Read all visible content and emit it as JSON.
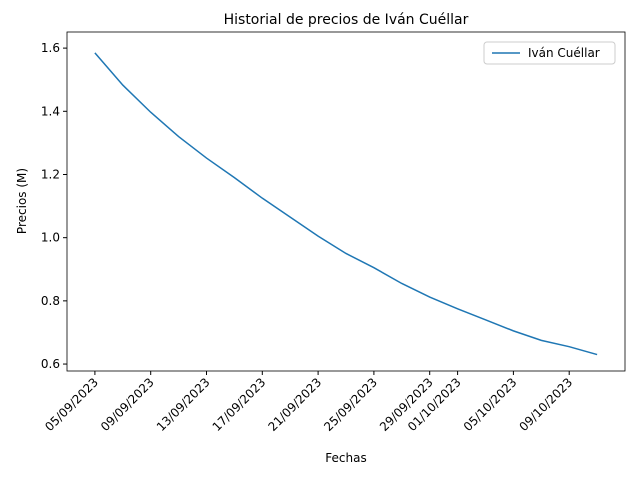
{
  "chart_data": {
    "type": "line",
    "title": "Historial de precios de Iván Cuéllar",
    "xlabel": "Fechas",
    "ylabel": "Precios (M)",
    "x": [
      "05/09/2023",
      "07/09/2023",
      "09/09/2023",
      "11/09/2023",
      "13/09/2023",
      "15/09/2023",
      "17/09/2023",
      "19/09/2023",
      "21/09/2023",
      "23/09/2023",
      "25/09/2023",
      "27/09/2023",
      "29/09/2023",
      "01/10/2023",
      "03/10/2023",
      "05/10/2023",
      "07/10/2023",
      "09/10/2023",
      "11/10/2023"
    ],
    "series": [
      {
        "name": "Iván Cuéllar",
        "color": "#1f77b4",
        "values": [
          1.585,
          1.483,
          1.397,
          1.32,
          1.252,
          1.19,
          1.125,
          1.065,
          1.005,
          0.95,
          0.905,
          0.855,
          0.812,
          0.775,
          0.74,
          0.705,
          0.675,
          0.655,
          0.63
        ]
      }
    ],
    "xlim": [
      "03/09/2023",
      "13/10/2023"
    ],
    "xticks": [
      "05/09/2023",
      "09/09/2023",
      "13/09/2023",
      "17/09/2023",
      "21/09/2023",
      "25/09/2023",
      "29/09/2023",
      "01/10/2023",
      "05/10/2023",
      "09/10/2023"
    ],
    "ylim": [
      0.578,
      1.651
    ],
    "yticks": [
      0.6,
      0.8,
      {
        "value": 1,
        "label": "1.0"
      },
      1.2,
      1.4,
      1.6
    ],
    "legend": "upper right"
  }
}
